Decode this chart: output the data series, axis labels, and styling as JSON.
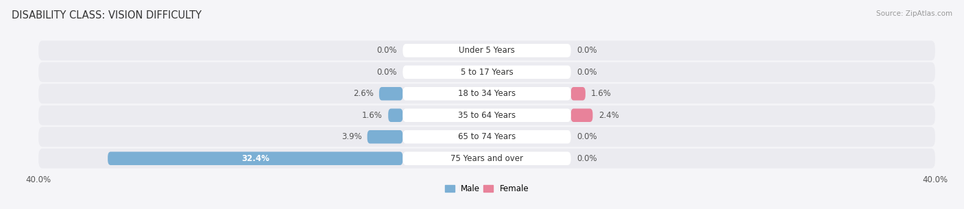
{
  "title": "DISABILITY CLASS: VISION DIFFICULTY",
  "source": "Source: ZipAtlas.com",
  "categories": [
    "Under 5 Years",
    "5 to 17 Years",
    "18 to 34 Years",
    "35 to 64 Years",
    "65 to 74 Years",
    "75 Years and over"
  ],
  "male_values": [
    0.0,
    0.0,
    2.6,
    1.6,
    3.9,
    32.4
  ],
  "female_values": [
    0.0,
    0.0,
    1.6,
    2.4,
    0.0,
    0.0
  ],
  "male_color": "#7bafd4",
  "female_color": "#e8829a",
  "row_bg_color": "#ebebf0",
  "label_bg_color": "#ffffff",
  "max_val": 40.0,
  "title_fontsize": 10.5,
  "label_fontsize": 8.5,
  "tick_fontsize": 8.5,
  "category_fontsize": 8.5,
  "background_color": "#f5f5f8"
}
